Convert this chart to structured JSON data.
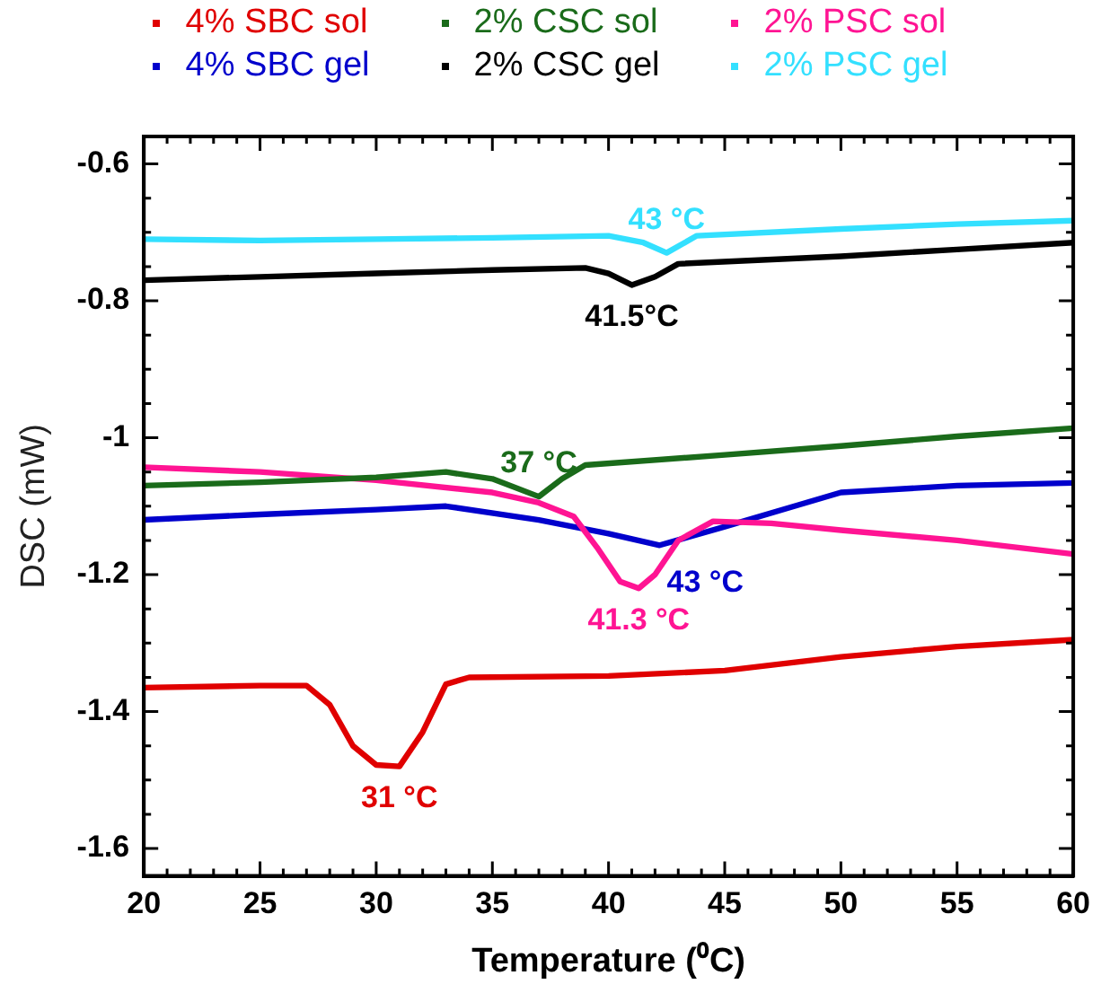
{
  "chart_data": {
    "type": "line",
    "xlabel": "Temperature (⁰C)",
    "ylabel": "DSC (mW)",
    "xlim": [
      20,
      60
    ],
    "xticks": [
      20,
      25,
      30,
      35,
      40,
      45,
      50,
      55,
      60
    ],
    "ylim": [
      -1.64,
      -0.56
    ],
    "yticks": [
      -1.6,
      -1.4,
      -1.2,
      -1,
      -0.8,
      -0.6
    ],
    "grid": false,
    "legend": "top",
    "marker": "none",
    "line_style": "solid",
    "series": [
      {
        "name": "4% SBC sol",
        "color": "#e00000",
        "x": [
          20,
          25,
          27,
          28,
          29,
          30,
          31,
          32,
          33,
          34,
          40,
          45,
          50,
          55,
          60
        ],
        "values": [
          -1.365,
          -1.362,
          -1.362,
          -1.39,
          -1.45,
          -1.478,
          -1.48,
          -1.43,
          -1.36,
          -1.35,
          -1.348,
          -1.34,
          -1.32,
          -1.305,
          -1.295
        ]
      },
      {
        "name": "2% CSC sol",
        "color": "#1a6b1a",
        "x": [
          20,
          25,
          30,
          33,
          35,
          37,
          38,
          39,
          45,
          50,
          55,
          60
        ],
        "values": [
          -1.07,
          -1.065,
          -1.058,
          -1.05,
          -1.06,
          -1.086,
          -1.06,
          -1.04,
          -1.025,
          -1.012,
          -0.998,
          -0.986
        ]
      },
      {
        "name": "2% PSC sol",
        "color": "#ff1493",
        "x": [
          20,
          25,
          30,
          35,
          37,
          38.5,
          39.5,
          40.5,
          41.3,
          42,
          43,
          44.5,
          47,
          50,
          55,
          60
        ],
        "values": [
          -1.043,
          -1.05,
          -1.062,
          -1.08,
          -1.095,
          -1.115,
          -1.16,
          -1.21,
          -1.22,
          -1.2,
          -1.15,
          -1.122,
          -1.125,
          -1.135,
          -1.15,
          -1.17
        ]
      },
      {
        "name": "4% SBC gel",
        "color": "#0000cc",
        "x": [
          20,
          25,
          30,
          33,
          37,
          40,
          42.2,
          45,
          48,
          50,
          55,
          60
        ],
        "values": [
          -1.12,
          -1.112,
          -1.105,
          -1.1,
          -1.12,
          -1.14,
          -1.157,
          -1.13,
          -1.1,
          -1.08,
          -1.07,
          -1.066
        ]
      },
      {
        "name": "2% CSC gel",
        "color": "#000000",
        "x": [
          20,
          25,
          30,
          35,
          39,
          40,
          41,
          42,
          43,
          50,
          55,
          60
        ],
        "values": [
          -0.77,
          -0.765,
          -0.76,
          -0.755,
          -0.752,
          -0.76,
          -0.777,
          -0.765,
          -0.746,
          -0.735,
          -0.725,
          -0.715
        ]
      },
      {
        "name": "2% PSC gel",
        "color": "#33e0ff",
        "x": [
          20,
          25,
          30,
          35,
          40,
          41.5,
          42.5,
          43.8,
          50,
          55,
          60
        ],
        "values": [
          -0.71,
          -0.712,
          -0.71,
          -0.708,
          -0.705,
          -0.715,
          -0.73,
          -0.705,
          -0.695,
          -0.688,
          -0.683
        ]
      }
    ],
    "annotations": [
      {
        "text": "43 °C",
        "x": 42.5,
        "y": -0.73
      },
      {
        "text": "41.5°C",
        "x": 41,
        "y": -0.777
      },
      {
        "text": "37 °C",
        "x": 37,
        "y": -1.086
      },
      {
        "text": "43 °C",
        "x": 42.2,
        "y": -1.157
      },
      {
        "text": "41.3 °C",
        "x": 41.3,
        "y": -1.22
      },
      {
        "text": "31 °C",
        "x": 31,
        "y": -1.48
      }
    ]
  }
}
